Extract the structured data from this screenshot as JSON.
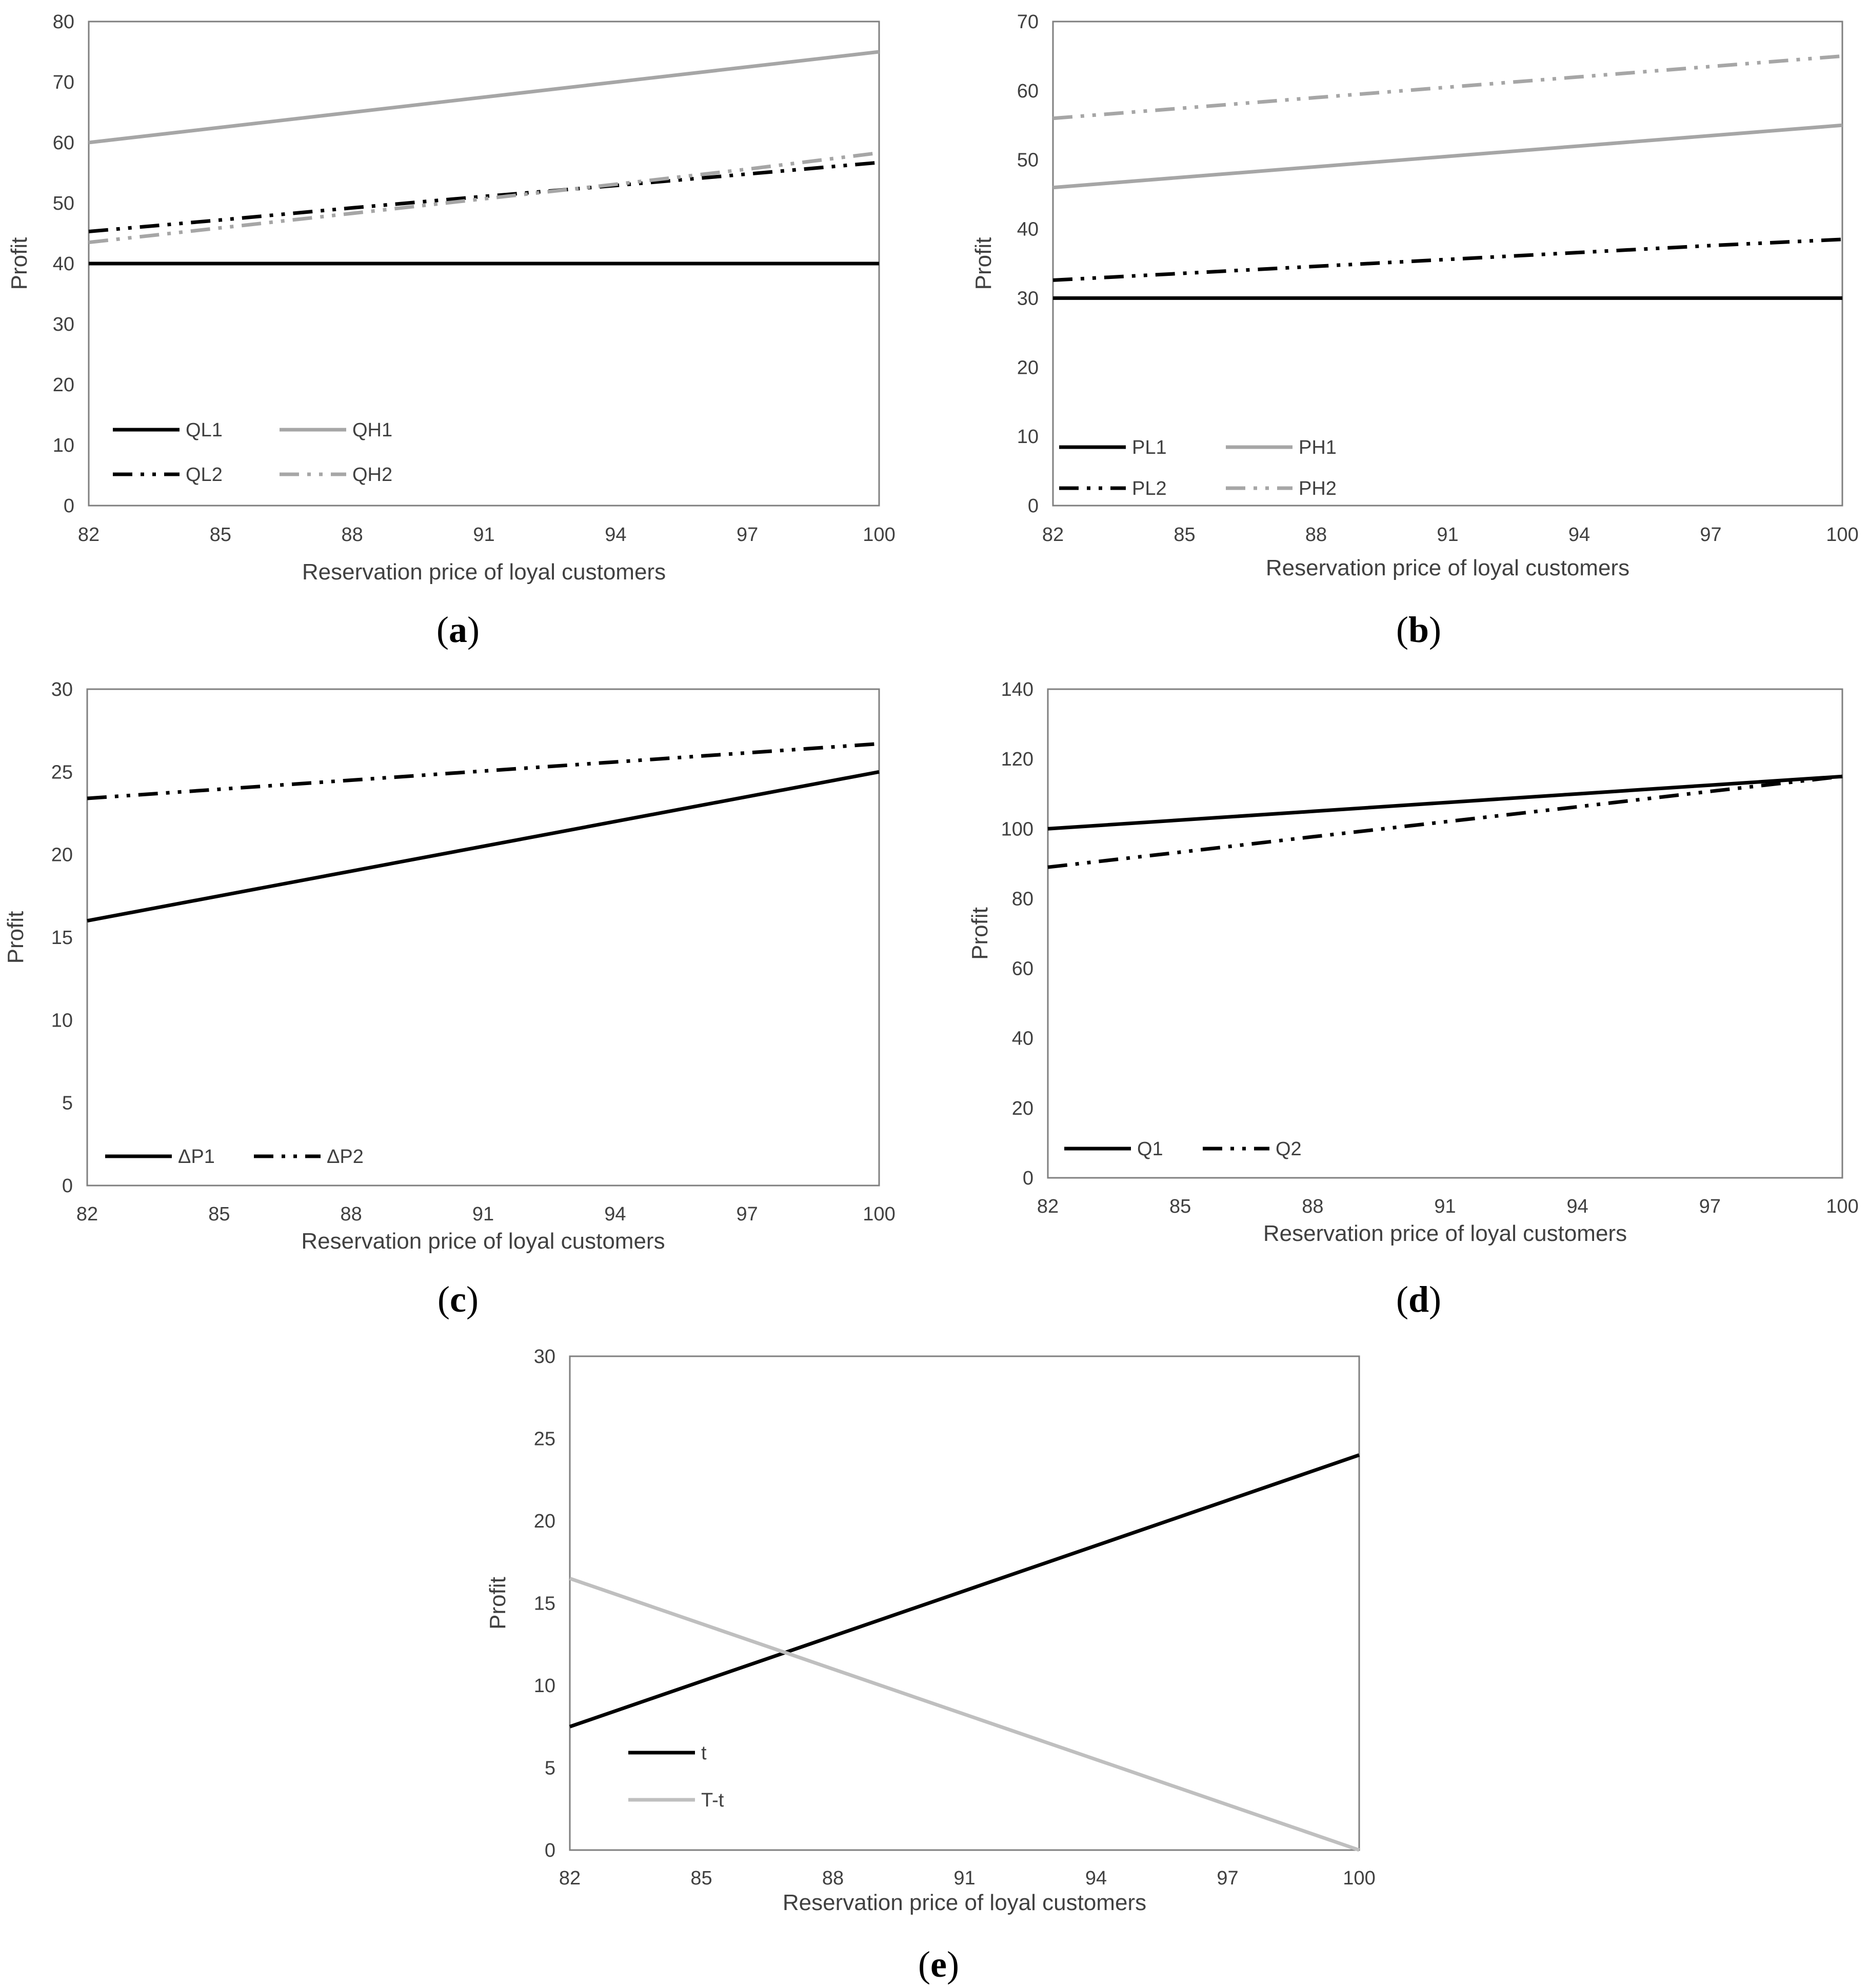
{
  "chart_data": [
    {
      "panel": "a",
      "type": "line",
      "title": "",
      "xlabel": "Reservation price of loyal customers",
      "ylabel": "Profit",
      "x": [
        82,
        85,
        88,
        91,
        94,
        97,
        100
      ],
      "xticks": [
        "82",
        "85",
        "88",
        "91",
        "94",
        "97",
        "100"
      ],
      "ylim": [
        0,
        80
      ],
      "yticks": [
        "0",
        "10",
        "20",
        "30",
        "40",
        "50",
        "60",
        "70",
        "80"
      ],
      "legend": "bottom-left",
      "series": [
        {
          "name": "QL1",
          "color": "#000000",
          "dash": "solid",
          "values": [
            40,
            40,
            40,
            40,
            40,
            40,
            40
          ]
        },
        {
          "name": "QH1",
          "color": "#a6a6a6",
          "dash": "solid",
          "values": [
            60,
            62.5,
            65,
            67.5,
            70,
            72.5,
            75
          ]
        },
        {
          "name": "QL2",
          "color": "#000000",
          "dash": "dashdotdot",
          "values": [
            45.3,
            47.2,
            49.2,
            51.1,
            52.9,
            54.8,
            56.7
          ]
        },
        {
          "name": "QH2",
          "color": "#a6a6a6",
          "dash": "dashdotdot",
          "values": [
            43.5,
            45.9,
            48.3,
            50.7,
            53.1,
            55.6,
            58.3
          ]
        }
      ]
    },
    {
      "panel": "b",
      "type": "line",
      "title": "",
      "xlabel": "Reservation price of loyal customers",
      "ylabel": "Profit",
      "x": [
        82,
        85,
        88,
        91,
        94,
        97,
        100
      ],
      "xticks": [
        "82",
        "85",
        "88",
        "91",
        "94",
        "97",
        "100"
      ],
      "ylim": [
        0,
        70
      ],
      "yticks": [
        "0",
        "10",
        "20",
        "30",
        "40",
        "50",
        "60",
        "70"
      ],
      "legend": "bottom-left",
      "series": [
        {
          "name": "PL1",
          "color": "#000000",
          "dash": "solid",
          "values": [
            30,
            30,
            30,
            30,
            30,
            30,
            30
          ]
        },
        {
          "name": "PH1",
          "color": "#a6a6a6",
          "dash": "solid",
          "values": [
            46,
            47.5,
            49,
            50.5,
            52,
            53.5,
            55
          ]
        },
        {
          "name": "PL2",
          "color": "#000000",
          "dash": "dashdotdot",
          "values": [
            32.6,
            33.6,
            34.6,
            35.6,
            36.6,
            37.6,
            38.5
          ]
        },
        {
          "name": "PH2",
          "color": "#a6a6a6",
          "dash": "dashdotdot",
          "values": [
            56,
            57.5,
            59,
            60.5,
            62,
            63.5,
            65
          ]
        }
      ]
    },
    {
      "panel": "c",
      "type": "line",
      "title": "",
      "xlabel": "Reservation price of loyal customers",
      "ylabel": "Profit",
      "x": [
        82,
        85,
        88,
        91,
        94,
        97,
        100
      ],
      "xticks": [
        "82",
        "85",
        "88",
        "91",
        "94",
        "97",
        "100"
      ],
      "ylim": [
        0,
        30
      ],
      "yticks": [
        "0",
        "5",
        "10",
        "15",
        "20",
        "25",
        "30"
      ],
      "legend": "bottom-left",
      "series": [
        {
          "name": "ΔP1",
          "color": "#000000",
          "dash": "solid",
          "values": [
            16,
            17.5,
            19,
            20.5,
            22,
            23.5,
            25
          ]
        },
        {
          "name": "ΔP2",
          "color": "#000000",
          "dash": "dashdotdot",
          "values": [
            23.4,
            23.95,
            24.5,
            25.05,
            25.6,
            26.15,
            26.7
          ]
        }
      ]
    },
    {
      "panel": "d",
      "type": "line",
      "title": "",
      "xlabel": "Reservation price of loyal customers",
      "ylabel": "Profit",
      "x": [
        82,
        85,
        88,
        91,
        94,
        97,
        100
      ],
      "xticks": [
        "82",
        "85",
        "88",
        "91",
        "94",
        "97",
        "100"
      ],
      "ylim": [
        0,
        140
      ],
      "yticks": [
        "0",
        "20",
        "40",
        "60",
        "80",
        "100",
        "120",
        "140"
      ],
      "legend": "bottom-left",
      "series": [
        {
          "name": "Q1",
          "color": "#000000",
          "dash": "solid",
          "values": [
            100,
            102.5,
            105,
            107.5,
            110,
            112.5,
            115
          ]
        },
        {
          "name": "Q2",
          "color": "#000000",
          "dash": "dashdotdot",
          "values": [
            89,
            93.3,
            97.7,
            102,
            106.3,
            110.7,
            115
          ]
        }
      ]
    },
    {
      "panel": "e",
      "type": "line",
      "title": "",
      "xlabel": "Reservation price of loyal customers",
      "ylabel": "Profit",
      "x": [
        82,
        85,
        88,
        91,
        94,
        97,
        100
      ],
      "xticks": [
        "82",
        "85",
        "88",
        "91",
        "94",
        "97",
        "100"
      ],
      "ylim": [
        0,
        30
      ],
      "yticks": [
        "0",
        "5",
        "10",
        "15",
        "20",
        "25",
        "30"
      ],
      "legend": "bottom-left",
      "series": [
        {
          "name": "t",
          "color": "#000000",
          "dash": "solid",
          "values": [
            7.5,
            10.25,
            13,
            15.75,
            18.5,
            21.25,
            24
          ]
        },
        {
          "name": "T-t",
          "color": "#bfbfbf",
          "dash": "solid",
          "values": [
            16.5,
            13.75,
            11,
            8.25,
            5.5,
            2.75,
            0
          ]
        }
      ]
    }
  ],
  "panel_labels": {
    "a": {
      "open": "(",
      "letter": "a",
      "close": ")"
    },
    "b": {
      "open": "(",
      "letter": "b",
      "close": ")"
    },
    "c": {
      "open": "(",
      "letter": "c",
      "close": ")"
    },
    "d": {
      "open": "(",
      "letter": "d",
      "close": ")"
    },
    "e": {
      "open": "(",
      "letter": "e",
      "close": ")"
    }
  }
}
